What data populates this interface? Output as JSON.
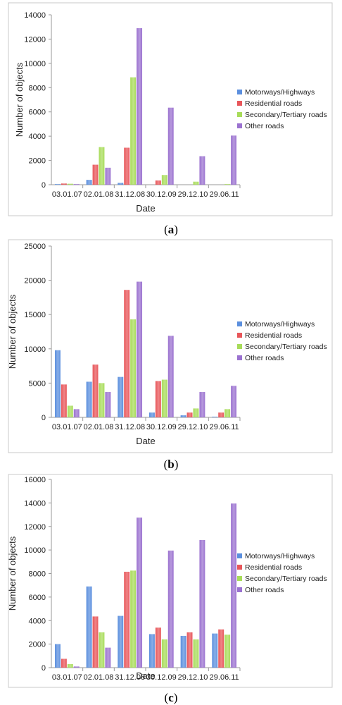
{
  "colors": {
    "Motorways/Highways": "#5b8fde",
    "Residential roads": "#e8565a",
    "Secondary/Tertiary roads": "#a8dc5a",
    "Other roads": "#9b72d0"
  },
  "panels": [
    {
      "caption_letter": "a"
    },
    {
      "caption_letter": "b"
    },
    {
      "caption_letter": "c"
    }
  ],
  "chart_data": [
    {
      "type": "bar",
      "title": "",
      "xlabel": "Date",
      "ylabel": "Number of objects",
      "ylim": [
        0,
        14000
      ],
      "yticks": [
        0,
        2000,
        4000,
        6000,
        8000,
        10000,
        12000,
        14000
      ],
      "categories": [
        "03.01.07",
        "02.01.08",
        "31.12.08",
        "30.12.09",
        "29.12.10",
        "29.06.11"
      ],
      "legend_position": "right",
      "grid": false,
      "series": [
        {
          "name": "Motorways/Highways",
          "values": [
            50,
            400,
            150,
            0,
            0,
            0
          ]
        },
        {
          "name": "Residential roads",
          "values": [
            100,
            1650,
            3050,
            350,
            0,
            0
          ]
        },
        {
          "name": "Secondary/Tertiary roads",
          "values": [
            80,
            3100,
            8850,
            800,
            250,
            50
          ]
        },
        {
          "name": "Other roads",
          "values": [
            50,
            1400,
            12900,
            6350,
            2350,
            4050
          ]
        }
      ]
    },
    {
      "type": "bar",
      "title": "",
      "xlabel": "Date",
      "ylabel": "Number of objects",
      "ylim": [
        0,
        25000
      ],
      "yticks": [
        0,
        5000,
        10000,
        15000,
        20000,
        25000
      ],
      "categories": [
        "03.01.07",
        "02.01.08",
        "31.12.08",
        "30.12.09",
        "29.12.10",
        "29.06.11"
      ],
      "legend_position": "right",
      "grid": false,
      "series": [
        {
          "name": "Motorways/Highways",
          "values": [
            9800,
            5200,
            5900,
            700,
            300,
            100
          ]
        },
        {
          "name": "Residential roads",
          "values": [
            4800,
            7700,
            18600,
            5300,
            700,
            700
          ]
        },
        {
          "name": "Secondary/Tertiary roads",
          "values": [
            1700,
            5000,
            14300,
            5500,
            1300,
            1200
          ]
        },
        {
          "name": "Other roads",
          "values": [
            1200,
            3700,
            19800,
            11900,
            3700,
            4600
          ]
        }
      ]
    },
    {
      "type": "bar",
      "title": "",
      "xlabel": "Date",
      "ylabel": "Number of objects",
      "ylim": [
        0,
        16000
      ],
      "yticks": [
        0,
        2000,
        4000,
        6000,
        8000,
        10000,
        12000,
        14000,
        16000
      ],
      "categories": [
        "03.01.07",
        "02.01.08",
        "31.12.08",
        "30.12.09",
        "29.12.10",
        "29.06.11"
      ],
      "legend_position": "right",
      "grid": false,
      "series": [
        {
          "name": "Motorways/Highways",
          "values": [
            2000,
            6900,
            4400,
            2850,
            2700,
            2900
          ]
        },
        {
          "name": "Residential roads",
          "values": [
            750,
            4350,
            8150,
            3400,
            3000,
            3250
          ]
        },
        {
          "name": "Secondary/Tertiary roads",
          "values": [
            300,
            3000,
            8250,
            2400,
            2400,
            2800
          ]
        },
        {
          "name": "Other roads",
          "values": [
            100,
            1700,
            12750,
            9950,
            10850,
            13950
          ]
        }
      ]
    }
  ]
}
